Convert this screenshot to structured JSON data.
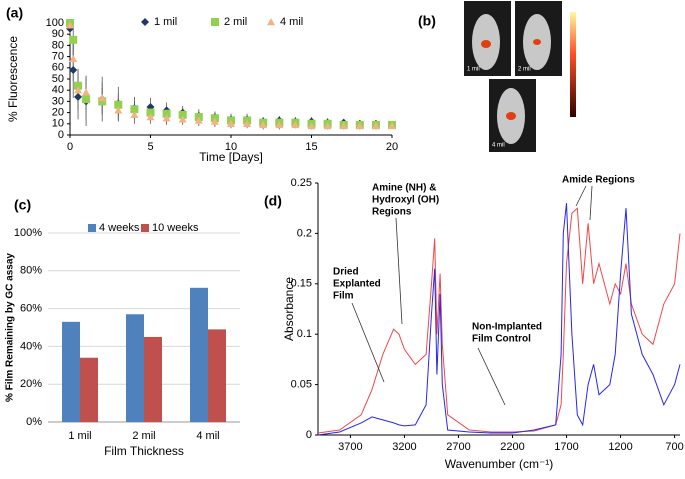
{
  "chart_data": [
    {
      "type": "scatter",
      "panel_label": "(a)",
      "ylabel": "% Fluorescence",
      "xlabel": "Time [Days]",
      "xlim": [
        0,
        20
      ],
      "xticks": [
        0,
        5,
        10,
        15,
        20
      ],
      "ylim": [
        0,
        100
      ],
      "yticks": [
        0,
        10,
        20,
        30,
        40,
        50,
        60,
        70,
        80,
        90,
        100
      ],
      "x": [
        0,
        0.2,
        0.5,
        1,
        2,
        3,
        4,
        5,
        6,
        7,
        8,
        9,
        10,
        11,
        12,
        13,
        14,
        15,
        16,
        17,
        18,
        19,
        20
      ],
      "series": [
        {
          "name": "1 mil",
          "color": "#1f3864",
          "marker": "diamond",
          "values": [
            95,
            58,
            34,
            30,
            32,
            28,
            24,
            25,
            22,
            20,
            17,
            16,
            14,
            14,
            12,
            13,
            12,
            12,
            11,
            11,
            10,
            10,
            9
          ],
          "errors": [
            5,
            25,
            20,
            22,
            20,
            15,
            10,
            8,
            7,
            6,
            6,
            5,
            5,
            5,
            4,
            4,
            4,
            4,
            4,
            3,
            3,
            3,
            2
          ]
        },
        {
          "name": "2 mil",
          "color": "#92d050",
          "marker": "square",
          "values": [
            100,
            85,
            44,
            32,
            30,
            27,
            23,
            20,
            19,
            18,
            16,
            15,
            13,
            13,
            11,
            11,
            11,
            10,
            10,
            9,
            9,
            9,
            9
          ],
          "errors": [
            3,
            15,
            15,
            18,
            12,
            10,
            8,
            7,
            6,
            6,
            5,
            5,
            5,
            4,
            4,
            4,
            4,
            4,
            3,
            3,
            3,
            3,
            2
          ]
        },
        {
          "name": "4 mil",
          "color": "#f4b183",
          "marker": "triangle",
          "values": [
            98,
            68,
            40,
            38,
            33,
            22,
            18,
            16,
            15,
            14,
            13,
            12,
            10,
            10,
            9,
            9,
            9,
            8,
            8,
            8,
            8,
            8,
            8
          ],
          "errors": [
            4,
            20,
            18,
            15,
            14,
            10,
            8,
            6,
            6,
            5,
            5,
            5,
            4,
            4,
            4,
            4,
            3,
            3,
            3,
            3,
            3,
            3,
            2
          ]
        }
      ]
    },
    {
      "type": "bar",
      "panel_label": "(c)",
      "ylabel": "% Film Remaining by GC assay",
      "xlabel": "Film Thickness",
      "categories": [
        "1 mil",
        "2 mil",
        "4 mil"
      ],
      "ylim": [
        0,
        100
      ],
      "grid": true,
      "yticks": [
        {
          "value": 0,
          "label": "0%"
        },
        {
          "value": 20,
          "label": "20%"
        },
        {
          "value": 40,
          "label": "40%"
        },
        {
          "value": 60,
          "label": "60%"
        },
        {
          "value": 80,
          "label": "80%"
        },
        {
          "value": 100,
          "label": "100%"
        }
      ],
      "series": [
        {
          "name": "4 weeks",
          "color": "#4f81bd",
          "values": [
            53,
            57,
            71
          ]
        },
        {
          "name": "10 weeks",
          "color": "#c0504d",
          "values": [
            34,
            45,
            49
          ]
        }
      ]
    },
    {
      "type": "line",
      "panel_label": "(d)",
      "ylabel": "Absorbance",
      "xlabel": "Wavenumber (cm⁻¹)",
      "xlim": [
        4000,
        650
      ],
      "xticks": [
        3700,
        3200,
        2700,
        2200,
        1700,
        1200,
        700
      ],
      "ylim": [
        0,
        0.25
      ],
      "yticks": [
        0,
        0.05,
        0.1,
        0.15,
        0.2,
        0.25
      ],
      "x": [
        4000,
        3800,
        3600,
        3500,
        3400,
        3300,
        3250,
        3200,
        3100,
        3000,
        2950,
        2920,
        2900,
        2870,
        2850,
        2800,
        2600,
        2400,
        2200,
        2000,
        1800,
        1750,
        1730,
        1700,
        1650,
        1600,
        1550,
        1500,
        1450,
        1400,
        1300,
        1250,
        1200,
        1150,
        1100,
        1000,
        900,
        800,
        700,
        650
      ],
      "series": [
        {
          "color": "#f04848",
          "values": [
            0.002,
            0.005,
            0.02,
            0.045,
            0.08,
            0.105,
            0.1,
            0.085,
            0.07,
            0.08,
            0.15,
            0.195,
            0.1,
            0.16,
            0.09,
            0.02,
            0.005,
            0.003,
            0.003,
            0.004,
            0.01,
            0.03,
            0.08,
            0.17,
            0.22,
            0.225,
            0.15,
            0.21,
            0.15,
            0.17,
            0.13,
            0.15,
            0.14,
            0.17,
            0.13,
            0.1,
            0.09,
            0.13,
            0.15,
            0.2
          ]
        },
        {
          "color": "#2626f0",
          "values": [
            0,
            0.003,
            0.012,
            0.018,
            0.015,
            0.012,
            0.01,
            0.009,
            0.01,
            0.03,
            0.12,
            0.165,
            0.06,
            0.14,
            0.05,
            0.005,
            0.003,
            0.002,
            0.002,
            0.005,
            0.01,
            0.08,
            0.2,
            0.23,
            0.1,
            0.02,
            0.01,
            0.05,
            0.07,
            0.04,
            0.05,
            0.08,
            0.16,
            0.225,
            0.12,
            0.08,
            0.06,
            0.03,
            0.05,
            0.07
          ]
        }
      ],
      "annotations": [
        {
          "lines": [
            "Amine (NH) &",
            "Hydroxyl (OH)",
            "Regions"
          ]
        },
        {
          "lines": [
            "Amide Regions"
          ]
        },
        {
          "lines": [
            "Dried",
            "Explanted",
            "Film"
          ]
        },
        {
          "lines": [
            "Non-Implanted",
            "Film Control"
          ]
        }
      ]
    }
  ],
  "panel_b": {
    "panel_label": "(b)",
    "image_labels": [
      "1 mil",
      "2 mil",
      "4 mil"
    ]
  }
}
